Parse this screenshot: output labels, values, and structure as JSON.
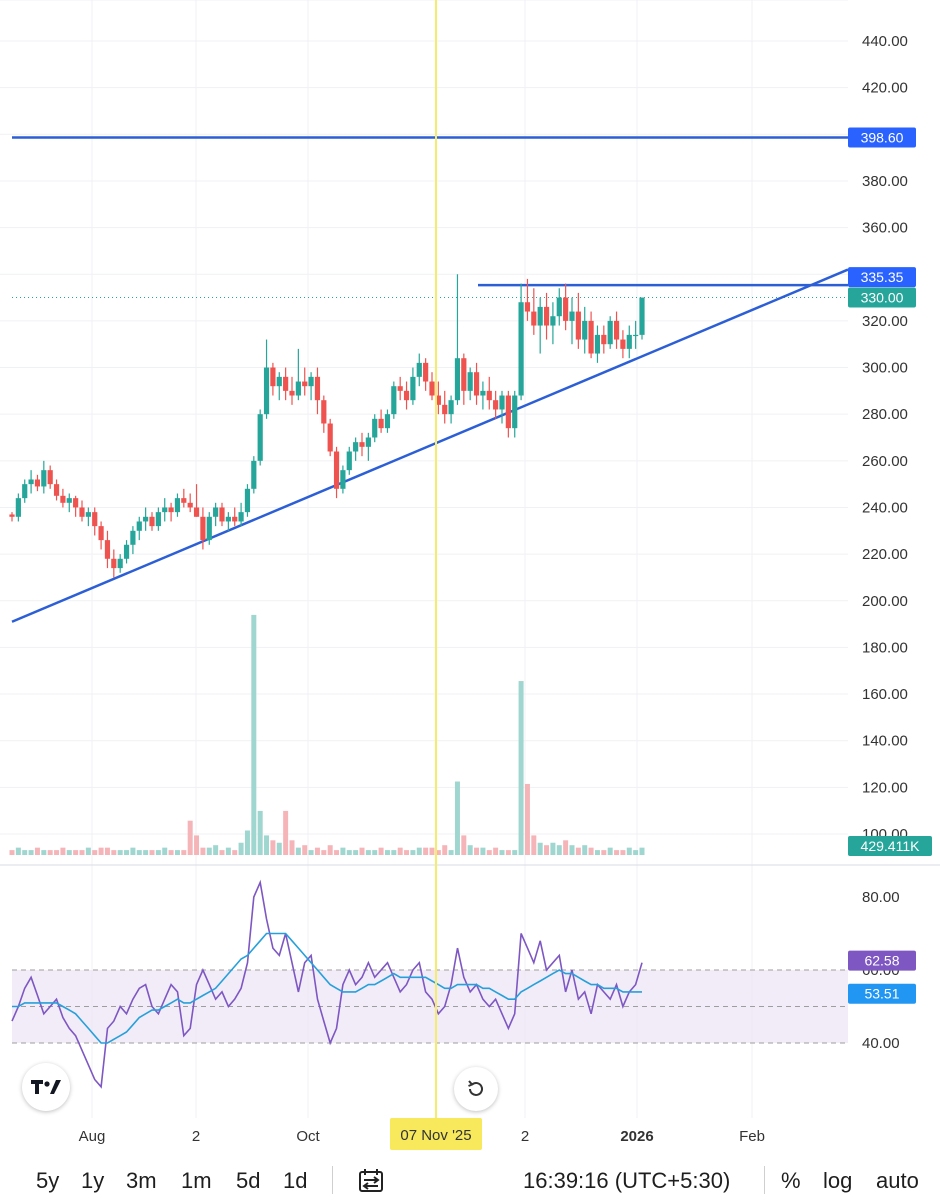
{
  "chart_data": [
    {
      "type": "candlestick",
      "y_axis_labels": [
        "440.00",
        "420.00",
        "400.00",
        "380.00",
        "360.00",
        "340.00",
        "320.00",
        "300.00",
        "280.00",
        "260.00",
        "240.00",
        "220.00",
        "200.00",
        "180.00",
        "160.00",
        "140.00",
        "120.00",
        "100.00"
      ],
      "ylim": [
        90,
        460
      ],
      "x_axis_labels": [
        "Aug",
        "2",
        "Oct",
        "07 Nov '25",
        "2",
        "2026",
        "Feb"
      ],
      "crosshair_date": "07 Nov '25",
      "price_tags": [
        {
          "label": "398.60",
          "color": "#2962ff"
        },
        {
          "label": "335.35",
          "color": "#2962ff"
        },
        {
          "label": "330.00",
          "color": "#26a69a"
        }
      ],
      "horizontal_lines": [
        398.6,
        335.35
      ],
      "last_price": 330.0,
      "trendline": {
        "from": 191,
        "to": 342
      },
      "candles": [
        [
          237,
          238,
          234,
          236
        ],
        [
          236,
          246,
          234,
          244
        ],
        [
          244,
          252,
          242,
          250
        ],
        [
          250,
          256,
          246,
          252
        ],
        [
          252,
          254,
          247,
          249
        ],
        [
          249,
          260,
          246,
          256
        ],
        [
          256,
          258,
          248,
          250
        ],
        [
          250,
          252,
          243,
          245
        ],
        [
          245,
          248,
          240,
          242
        ],
        [
          242,
          246,
          238,
          244
        ],
        [
          244,
          245,
          236,
          240
        ],
        [
          240,
          243,
          234,
          236
        ],
        [
          236,
          240,
          232,
          238
        ],
        [
          238,
          240,
          228,
          232
        ],
        [
          232,
          234,
          222,
          226
        ],
        [
          226,
          230,
          214,
          218
        ],
        [
          218,
          222,
          210,
          214
        ],
        [
          214,
          220,
          212,
          218
        ],
        [
          218,
          226,
          216,
          224
        ],
        [
          224,
          232,
          220,
          230
        ],
        [
          230,
          236,
          226,
          234
        ],
        [
          234,
          240,
          230,
          236
        ],
        [
          236,
          238,
          230,
          232
        ],
        [
          232,
          240,
          230,
          238
        ],
        [
          238,
          244,
          234,
          240
        ],
        [
          240,
          242,
          234,
          238
        ],
        [
          238,
          246,
          236,
          244
        ],
        [
          244,
          248,
          240,
          242
        ],
        [
          242,
          246,
          238,
          240
        ],
        [
          240,
          250,
          236,
          236
        ],
        [
          236,
          240,
          222,
          226
        ],
        [
          226,
          238,
          224,
          236
        ],
        [
          236,
          242,
          232,
          240
        ],
        [
          240,
          242,
          232,
          234
        ],
        [
          234,
          238,
          230,
          236
        ],
        [
          236,
          240,
          232,
          234
        ],
        [
          234,
          242,
          232,
          238
        ],
        [
          238,
          250,
          236,
          248
        ],
        [
          248,
          262,
          246,
          260
        ],
        [
          260,
          282,
          258,
          280
        ],
        [
          280,
          312,
          278,
          300
        ],
        [
          300,
          302,
          288,
          292
        ],
        [
          292,
          298,
          286,
          296
        ],
        [
          296,
          300,
          286,
          290
        ],
        [
          290,
          296,
          284,
          288
        ],
        [
          288,
          308,
          286,
          294
        ],
        [
          294,
          300,
          288,
          292
        ],
        [
          292,
          298,
          286,
          296
        ],
        [
          296,
          300,
          280,
          286
        ],
        [
          286,
          288,
          272,
          276
        ],
        [
          276,
          278,
          262,
          264
        ],
        [
          264,
          266,
          244,
          248
        ],
        [
          248,
          258,
          246,
          256
        ],
        [
          256,
          266,
          254,
          264
        ],
        [
          264,
          270,
          260,
          268
        ],
        [
          268,
          272,
          262,
          266
        ],
        [
          266,
          272,
          260,
          270
        ],
        [
          270,
          280,
          268,
          278
        ],
        [
          278,
          282,
          272,
          274
        ],
        [
          274,
          282,
          272,
          280
        ],
        [
          280,
          294,
          278,
          292
        ],
        [
          292,
          296,
          286,
          290
        ],
        [
          290,
          294,
          282,
          286
        ],
        [
          286,
          300,
          284,
          296
        ],
        [
          296,
          306,
          292,
          302
        ],
        [
          302,
          304,
          290,
          294
        ],
        [
          294,
          298,
          286,
          288
        ],
        [
          288,
          294,
          280,
          284
        ],
        [
          284,
          290,
          276,
          280
        ],
        [
          280,
          288,
          276,
          286
        ],
        [
          286,
          340,
          284,
          304
        ],
        [
          304,
          306,
          284,
          290
        ],
        [
          290,
          300,
          286,
          298
        ],
        [
          298,
          302,
          284,
          288
        ],
        [
          288,
          294,
          282,
          290
        ],
        [
          290,
          296,
          282,
          286
        ],
        [
          286,
          290,
          278,
          282
        ],
        [
          282,
          290,
          276,
          288
        ],
        [
          288,
          290,
          270,
          274
        ],
        [
          274,
          290,
          270,
          288
        ],
        [
          288,
          336,
          286,
          328
        ],
        [
          328,
          338,
          320,
          324
        ],
        [
          324,
          334,
          314,
          318
        ],
        [
          318,
          330,
          306,
          326
        ],
        [
          326,
          332,
          312,
          318
        ],
        [
          318,
          328,
          310,
          322
        ],
        [
          322,
          334,
          318,
          330
        ],
        [
          330,
          336,
          316,
          320
        ],
        [
          320,
          330,
          310,
          324
        ],
        [
          324,
          332,
          308,
          312
        ],
        [
          312,
          326,
          306,
          320
        ],
        [
          320,
          324,
          304,
          306
        ],
        [
          306,
          318,
          302,
          314
        ],
        [
          314,
          318,
          306,
          310
        ],
        [
          310,
          322,
          308,
          320
        ],
        [
          320,
          324,
          308,
          312
        ],
        [
          312,
          316,
          304,
          308
        ],
        [
          308,
          318,
          304,
          314
        ],
        [
          314,
          320,
          308,
          314
        ],
        [
          314,
          330,
          312,
          330
        ]
      ],
      "volume_tag": "429.411K",
      "volumes": [
        2,
        3,
        2,
        2,
        3,
        2,
        2,
        2,
        3,
        2,
        2,
        2,
        3,
        2,
        3,
        3,
        2,
        2,
        2,
        3,
        2,
        2,
        2,
        2,
        3,
        2,
        2,
        2,
        14,
        8,
        3,
        3,
        4,
        2,
        3,
        2,
        5,
        10,
        98,
        18,
        8,
        6,
        5,
        18,
        6,
        3,
        4,
        2,
        3,
        2,
        4,
        2,
        3,
        2,
        2,
        3,
        2,
        2,
        3,
        2,
        2,
        3,
        2,
        2,
        3,
        3,
        3,
        2,
        4,
        2,
        30,
        8,
        4,
        3,
        3,
        2,
        3,
        2,
        2,
        2,
        71,
        29,
        8,
        5,
        4,
        5,
        4,
        6,
        4,
        3,
        4,
        3,
        2,
        2,
        3,
        2,
        2,
        3,
        2,
        3
      ]
    },
    {
      "type": "line",
      "title": "RSI",
      "y_axis_labels": [
        "80.00",
        "60.00",
        "40.00"
      ],
      "ylim": [
        34,
        88
      ],
      "band": [
        40,
        60
      ],
      "mid_line": 50,
      "value_tags": [
        {
          "label": "62.58",
          "color": "#7e57c2"
        },
        {
          "label": "53.51",
          "color": "#2196f3"
        }
      ],
      "series": [
        {
          "name": "RSI",
          "color": "#7e57c2",
          "values": [
            46,
            50,
            55,
            58,
            53,
            48,
            50,
            52,
            47,
            44,
            42,
            38,
            34,
            30,
            28,
            44,
            46,
            50,
            48,
            52,
            55,
            56,
            50,
            48,
            52,
            56,
            54,
            42,
            44,
            56,
            60,
            56,
            52,
            54,
            50,
            52,
            55,
            62,
            80,
            84,
            74,
            66,
            64,
            70,
            62,
            54,
            62,
            64,
            52,
            46,
            40,
            44,
            56,
            60,
            56,
            58,
            62,
            58,
            60,
            62,
            58,
            54,
            56,
            60,
            62,
            54,
            52,
            48,
            50,
            56,
            66,
            58,
            54,
            56,
            52,
            50,
            52,
            48,
            44,
            48,
            70,
            66,
            62,
            68,
            60,
            62,
            64,
            54,
            60,
            52,
            54,
            48,
            56,
            54,
            52,
            56,
            50,
            54,
            56,
            62
          ]
        },
        {
          "name": "RSI-MA",
          "color": "#26a0da",
          "values": [
            50,
            50,
            51,
            51,
            51,
            51,
            51,
            51,
            50,
            49,
            48,
            46,
            44,
            42,
            40,
            40,
            41,
            42,
            43,
            45,
            47,
            48,
            49,
            49,
            50,
            51,
            52,
            51,
            51,
            52,
            53,
            54,
            55,
            57,
            59,
            61,
            63,
            64,
            66,
            68,
            70,
            70,
            70,
            70,
            68,
            66,
            64,
            62,
            60,
            58,
            56,
            55,
            54,
            54,
            54,
            55,
            56,
            56,
            57,
            58,
            59,
            58,
            58,
            58,
            58,
            58,
            57,
            56,
            55,
            55,
            56,
            56,
            56,
            56,
            55,
            55,
            54,
            53,
            52,
            52,
            54,
            55,
            56,
            57,
            58,
            59,
            60,
            59,
            59,
            58,
            57,
            56,
            56,
            55,
            55,
            55,
            54,
            54,
            54,
            54
          ]
        }
      ]
    }
  ],
  "bottom_bar": {
    "timeframes": [
      "5y",
      "1y",
      "3m",
      "1m",
      "5d",
      "1d"
    ],
    "time": "16:39:16 (UTC+5:30)",
    "right": [
      "%",
      "log",
      "auto"
    ]
  },
  "icons": [
    "tradingview-logo-icon",
    "calendar-range-icon",
    "reset-icon"
  ]
}
